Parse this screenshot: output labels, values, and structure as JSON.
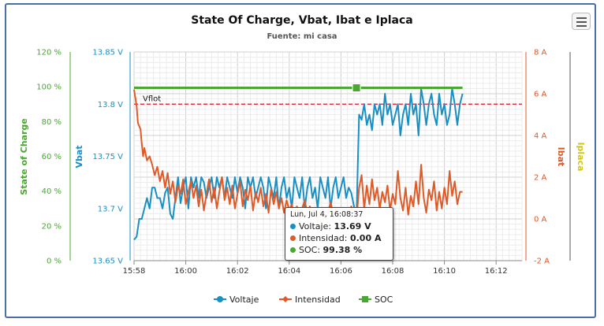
{
  "chart_data": {
    "type": "line",
    "title": "State Of Charge, Vbat, Ibat e Iplaca",
    "subtitle": "Fuente: mi casa",
    "x_ticks": [
      "15:58",
      "16:00",
      "16:02",
      "16:04",
      "16:06",
      "16:08",
      "16:10",
      "16:12"
    ],
    "x_range": [
      "15:58",
      "16:13"
    ],
    "axes": {
      "soc": {
        "title": "State of Charge",
        "ticks": [
          "0 %",
          "20 %",
          "40 %",
          "60 %",
          "80 %",
          "100 %",
          "120 %"
        ],
        "range": [
          0,
          120
        ],
        "color": "#4aa832"
      },
      "vbat": {
        "title": "Vbat",
        "ticks": [
          "13.65 V",
          "13.7 V",
          "13.75 V",
          "13.8 V",
          "13.85 V"
        ],
        "range": [
          13.65,
          13.85
        ],
        "color": "#1a8fc4"
      },
      "ibat": {
        "title": "Ibat",
        "ticks": [
          "-2 A",
          "0 A",
          "2 A",
          "4 A",
          "6 A",
          "8 A"
        ],
        "range": [
          -2,
          8
        ],
        "color": "#e05a28"
      },
      "iplaca": {
        "title": "Iplaca",
        "color": "#d4c414"
      }
    },
    "plot_line": {
      "label": "Vflot",
      "value": 13.8,
      "axis": "vbat",
      "color": "#d6192a"
    },
    "series": [
      {
        "name": "Voltaje",
        "axis": "vbat",
        "color": "#1a8fc4",
        "points": [
          [
            0,
            13.67
          ],
          [
            0.1,
            13.673
          ],
          [
            0.2,
            13.69
          ],
          [
            0.3,
            13.69
          ],
          [
            0.4,
            13.7
          ],
          [
            0.5,
            13.71
          ],
          [
            0.6,
            13.7
          ],
          [
            0.7,
            13.72
          ],
          [
            0.8,
            13.72
          ],
          [
            0.9,
            13.71
          ],
          [
            1.0,
            13.71
          ],
          [
            1.1,
            13.7
          ],
          [
            1.2,
            13.715
          ],
          [
            1.3,
            13.72
          ],
          [
            1.4,
            13.695
          ],
          [
            1.5,
            13.69
          ],
          [
            1.6,
            13.71
          ],
          [
            1.7,
            13.73
          ],
          [
            1.8,
            13.705
          ],
          [
            1.9,
            13.72
          ],
          [
            2.0,
            13.73
          ],
          [
            2.1,
            13.7
          ],
          [
            2.2,
            13.73
          ],
          [
            2.3,
            13.72
          ],
          [
            2.4,
            13.73
          ],
          [
            2.5,
            13.71
          ],
          [
            2.6,
            13.73
          ],
          [
            2.7,
            13.725
          ],
          [
            2.8,
            13.71
          ],
          [
            2.9,
            13.72
          ],
          [
            3.0,
            13.73
          ],
          [
            3.1,
            13.71
          ],
          [
            3.2,
            13.73
          ],
          [
            3.3,
            13.72
          ],
          [
            3.4,
            13.73
          ],
          [
            3.5,
            13.71
          ],
          [
            3.6,
            13.73
          ],
          [
            3.7,
            13.72
          ],
          [
            3.8,
            13.71
          ],
          [
            3.9,
            13.73
          ],
          [
            4.0,
            13.715
          ],
          [
            4.1,
            13.73
          ],
          [
            4.2,
            13.72
          ],
          [
            4.3,
            13.7
          ],
          [
            4.4,
            13.73
          ],
          [
            4.5,
            13.72
          ],
          [
            4.6,
            13.73
          ],
          [
            4.7,
            13.71
          ],
          [
            4.8,
            13.72
          ],
          [
            4.9,
            13.73
          ],
          [
            5.0,
            13.72
          ],
          [
            5.1,
            13.7
          ],
          [
            5.2,
            13.73
          ],
          [
            5.3,
            13.72
          ],
          [
            5.4,
            13.71
          ],
          [
            5.5,
            13.73
          ],
          [
            5.6,
            13.7
          ],
          [
            5.7,
            13.72
          ],
          [
            5.8,
            13.73
          ],
          [
            5.9,
            13.71
          ],
          [
            6.0,
            13.72
          ],
          [
            6.1,
            13.7
          ],
          [
            6.2,
            13.73
          ],
          [
            6.3,
            13.72
          ],
          [
            6.4,
            13.71
          ],
          [
            6.5,
            13.73
          ],
          [
            6.6,
            13.7
          ],
          [
            6.7,
            13.72
          ],
          [
            6.8,
            13.73
          ],
          [
            6.9,
            13.71
          ],
          [
            7.0,
            13.72
          ],
          [
            7.1,
            13.7
          ],
          [
            7.2,
            13.73
          ],
          [
            7.3,
            13.72
          ],
          [
            7.4,
            13.71
          ],
          [
            7.5,
            13.73
          ],
          [
            7.6,
            13.7
          ],
          [
            7.7,
            13.72
          ],
          [
            7.8,
            13.73
          ],
          [
            7.9,
            13.71
          ],
          [
            8.0,
            13.72
          ],
          [
            8.1,
            13.73
          ],
          [
            8.2,
            13.71
          ],
          [
            8.3,
            13.72
          ],
          [
            8.4,
            13.715
          ],
          [
            8.6,
            13.69
          ],
          [
            8.65,
            13.74
          ],
          [
            8.7,
            13.79
          ],
          [
            8.8,
            13.785
          ],
          [
            8.9,
            13.8
          ],
          [
            9.0,
            13.78
          ],
          [
            9.1,
            13.79
          ],
          [
            9.2,
            13.775
          ],
          [
            9.3,
            13.8
          ],
          [
            9.4,
            13.79
          ],
          [
            9.5,
            13.8
          ],
          [
            9.6,
            13.78
          ],
          [
            9.7,
            13.81
          ],
          [
            9.8,
            13.79
          ],
          [
            9.9,
            13.8
          ],
          [
            10.0,
            13.78
          ],
          [
            10.1,
            13.79
          ],
          [
            10.2,
            13.8
          ],
          [
            10.3,
            13.77
          ],
          [
            10.4,
            13.79
          ],
          [
            10.5,
            13.8
          ],
          [
            10.6,
            13.78
          ],
          [
            10.7,
            13.81
          ],
          [
            10.8,
            13.79
          ],
          [
            10.9,
            13.8
          ],
          [
            11.0,
            13.77
          ],
          [
            11.1,
            13.815
          ],
          [
            11.2,
            13.8
          ],
          [
            11.3,
            13.78
          ],
          [
            11.4,
            13.8
          ],
          [
            11.5,
            13.81
          ],
          [
            11.6,
            13.79
          ],
          [
            11.7,
            13.78
          ],
          [
            11.8,
            13.81
          ],
          [
            11.9,
            13.79
          ],
          [
            12.0,
            13.8
          ],
          [
            12.1,
            13.78
          ],
          [
            12.2,
            13.79
          ],
          [
            12.3,
            13.815
          ],
          [
            12.4,
            13.8
          ],
          [
            12.5,
            13.78
          ],
          [
            12.6,
            13.8
          ],
          [
            12.7,
            13.81
          ]
        ]
      },
      {
        "name": "Intensidad",
        "axis": "ibat",
        "color": "#e05a28",
        "points": [
          [
            0,
            6.2
          ],
          [
            0.1,
            5.4
          ],
          [
            0.15,
            4.6
          ],
          [
            0.25,
            4.3
          ],
          [
            0.3,
            3.6
          ],
          [
            0.35,
            3.0
          ],
          [
            0.4,
            3.4
          ],
          [
            0.5,
            2.8
          ],
          [
            0.6,
            3.0
          ],
          [
            0.7,
            2.6
          ],
          [
            0.8,
            2.1
          ],
          [
            0.9,
            2.5
          ],
          [
            1.0,
            1.8
          ],
          [
            1.1,
            2.3
          ],
          [
            1.2,
            1.5
          ],
          [
            1.3,
            2.2
          ],
          [
            1.4,
            1.2
          ],
          [
            1.5,
            1.8
          ],
          [
            1.6,
            0.8
          ],
          [
            1.7,
            1.6
          ],
          [
            1.8,
            1.2
          ],
          [
            1.9,
            1.9
          ],
          [
            2.0,
            0.7
          ],
          [
            2.1,
            1.3
          ],
          [
            2.2,
            1.8
          ],
          [
            2.3,
            1.0
          ],
          [
            2.4,
            1.6
          ],
          [
            2.5,
            0.6
          ],
          [
            2.6,
            1.4
          ],
          [
            2.7,
            0.4
          ],
          [
            2.8,
            1.2
          ],
          [
            2.9,
            1.9
          ],
          [
            3.0,
            0.8
          ],
          [
            3.1,
            1.5
          ],
          [
            3.2,
            0.5
          ],
          [
            3.3,
            1.3
          ],
          [
            3.4,
            2.0
          ],
          [
            3.5,
            0.9
          ],
          [
            3.6,
            1.5
          ],
          [
            3.7,
            0.7
          ],
          [
            3.8,
            1.6
          ],
          [
            3.9,
            0.5
          ],
          [
            4.0,
            1.2
          ],
          [
            4.1,
            1.8
          ],
          [
            4.2,
            0.6
          ],
          [
            4.3,
            1.4
          ],
          [
            4.4,
            0.9
          ],
          [
            4.5,
            1.6
          ],
          [
            4.6,
            0.4
          ],
          [
            4.7,
            1.3
          ],
          [
            4.8,
            0.8
          ],
          [
            4.9,
            1.5
          ],
          [
            5.0,
            0.6
          ],
          [
            5.1,
            1.2
          ],
          [
            5.2,
            0.3
          ],
          [
            5.3,
            1.4
          ],
          [
            5.4,
            0.7
          ],
          [
            5.5,
            1.3
          ],
          [
            5.6,
            0.5
          ],
          [
            5.7,
            1.0
          ],
          [
            5.8,
            0.3
          ],
          [
            5.9,
            0.9
          ],
          [
            6.0,
            0.4
          ],
          [
            6.1,
            0.7
          ],
          [
            6.2,
            0.0
          ],
          [
            6.3,
            0.6
          ],
          [
            6.4,
            -0.1
          ],
          [
            6.5,
            0.5
          ],
          [
            6.6,
            0.9
          ],
          [
            6.7,
            0.2
          ],
          [
            6.8,
            0.6
          ],
          [
            6.9,
            0.1
          ],
          [
            7.0,
            0.5
          ],
          [
            7.1,
            -0.2
          ],
          [
            7.2,
            0.3
          ],
          [
            7.3,
            0.5
          ],
          [
            7.4,
            0.0
          ],
          [
            7.5,
            0.3
          ],
          [
            7.6,
            0.8
          ],
          [
            7.7,
            0.2
          ],
          [
            7.8,
            0.5
          ],
          [
            7.9,
            0.1
          ],
          [
            8.0,
            0.4
          ],
          [
            8.1,
            0.2
          ],
          [
            8.2,
            0.5
          ],
          [
            8.3,
            0.3
          ],
          [
            8.4,
            0.6
          ],
          [
            8.6,
            0.0
          ],
          [
            8.7,
            1.5
          ],
          [
            8.8,
            2.1
          ],
          [
            8.9,
            0.5
          ],
          [
            9.0,
            1.6
          ],
          [
            9.1,
            0.7
          ],
          [
            9.2,
            1.9
          ],
          [
            9.3,
            0.9
          ],
          [
            9.4,
            1.5
          ],
          [
            9.5,
            0.5
          ],
          [
            9.6,
            1.3
          ],
          [
            9.7,
            0.8
          ],
          [
            9.8,
            1.6
          ],
          [
            9.9,
            0.4
          ],
          [
            10.0,
            1.2
          ],
          [
            10.1,
            0.7
          ],
          [
            10.2,
            2.3
          ],
          [
            10.3,
            1.0
          ],
          [
            10.4,
            0.4
          ],
          [
            10.5,
            1.5
          ],
          [
            10.6,
            0.2
          ],
          [
            10.7,
            1.1
          ],
          [
            10.8,
            0.6
          ],
          [
            10.9,
            1.8
          ],
          [
            11.0,
            0.7
          ],
          [
            11.1,
            2.6
          ],
          [
            11.2,
            1.0
          ],
          [
            11.3,
            0.3
          ],
          [
            11.4,
            1.4
          ],
          [
            11.5,
            0.9
          ],
          [
            11.6,
            1.8
          ],
          [
            11.7,
            0.4
          ],
          [
            11.8,
            1.3
          ],
          [
            11.9,
            0.5
          ],
          [
            12.0,
            1.5
          ],
          [
            12.1,
            0.7
          ],
          [
            12.2,
            2.3
          ],
          [
            12.3,
            1.1
          ],
          [
            12.4,
            1.8
          ],
          [
            12.5,
            0.7
          ],
          [
            12.6,
            1.3
          ],
          [
            12.7,
            1.3
          ]
        ]
      },
      {
        "name": "SOC",
        "axis": "soc",
        "color": "#4aa832",
        "points": [
          [
            0,
            99.38
          ],
          [
            12.7,
            99.38
          ]
        ]
      }
    ],
    "legend": [
      "Voltaje",
      "Intensidad",
      "SOC"
    ],
    "legend_position": "bottom-center",
    "grid": true,
    "tooltip": {
      "header": "Lun, Jul 4, 16:08:37",
      "rows": [
        {
          "label": "Voltaje: ",
          "value": "13.69 V",
          "color": "#1a8fc4"
        },
        {
          "label": "Intensidad: ",
          "value": "0.00 A",
          "color": "#e05a28"
        },
        {
          "label": "SOC: ",
          "value": "99.38 %",
          "color": "#4aa832"
        }
      ]
    }
  }
}
